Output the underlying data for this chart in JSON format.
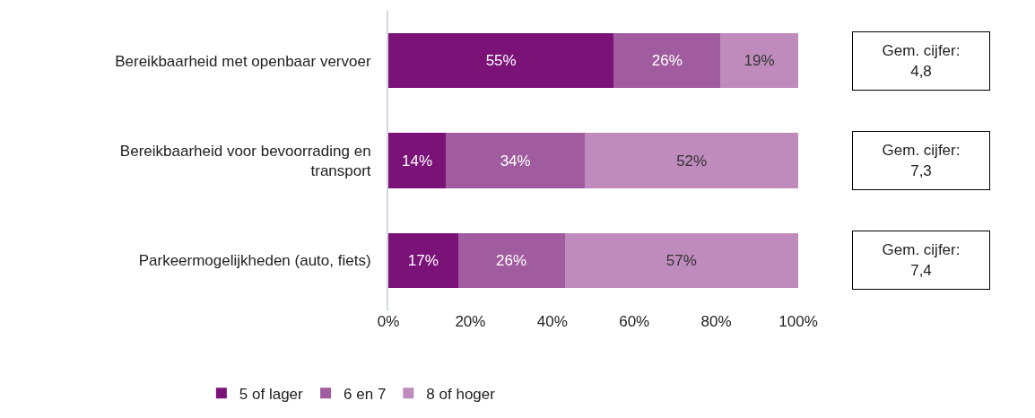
{
  "chart_data": {
    "type": "bar",
    "orientation": "horizontal",
    "stacked": true,
    "categories": [
      "Bereikbaarheid met openbaar vervoer",
      "Bereikbaarheid voor bevoorrading en transport",
      "Parkeermogelijkheden (auto, fiets)"
    ],
    "series": [
      {
        "name": "5 of lager",
        "color": "#7b1278",
        "values": [
          55,
          14,
          17
        ],
        "value_labels": [
          "55%",
          "14%",
          "17%"
        ]
      },
      {
        "name": "6 en 7",
        "color": "#a05c9e",
        "values": [
          26,
          34,
          26
        ],
        "value_labels": [
          "26%",
          "34%",
          "26%"
        ]
      },
      {
        "name": "8 of hoger",
        "color": "#bf8bbd",
        "values": [
          19,
          52,
          57
        ],
        "value_labels": [
          "19%",
          "52%",
          "57%"
        ]
      }
    ],
    "xlim": [
      0,
      100
    ],
    "xticks": [
      {
        "value": 0,
        "label": "0%"
      },
      {
        "value": 20,
        "label": "20%"
      },
      {
        "value": 40,
        "label": "40%"
      },
      {
        "value": 60,
        "label": "60%"
      },
      {
        "value": 80,
        "label": "80%"
      },
      {
        "value": 100,
        "label": "100%"
      }
    ],
    "grid": false,
    "legend": "bottom",
    "annotations": [
      "Gem. cijfer:\n4,8",
      "Gem. cijfer:\n7,3",
      "Gem. cijfer:\n7,4"
    ]
  }
}
